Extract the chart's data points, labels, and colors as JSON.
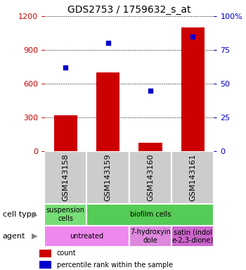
{
  "title": "GDS2753 / 1759632_s_at",
  "samples": [
    "GSM143158",
    "GSM143159",
    "GSM143160",
    "GSM143161"
  ],
  "counts": [
    320,
    700,
    75,
    1100
  ],
  "percentile_ranks": [
    62,
    80,
    45,
    85
  ],
  "left_ylim": [
    0,
    1200
  ],
  "left_yticks": [
    0,
    300,
    600,
    900,
    1200
  ],
  "right_ylim": [
    0,
    100
  ],
  "right_yticks": [
    0,
    25,
    50,
    75,
    100
  ],
  "bar_color": "#cc0000",
  "dot_color": "#0000cc",
  "cell_type_blocks": [
    {
      "label": "suspension\ncells",
      "color": "#77dd77",
      "start": 0,
      "end": 1
    },
    {
      "label": "biofilm cells",
      "color": "#55cc55",
      "start": 1,
      "end": 4
    }
  ],
  "agent_blocks": [
    {
      "label": "untreated",
      "color": "#ee88ee",
      "start": 0,
      "end": 2
    },
    {
      "label": "7-hydroxyin\ndole",
      "color": "#dd88dd",
      "start": 2,
      "end": 3
    },
    {
      "label": "satin (indol\ne-2,3-dione)",
      "color": "#cc66cc",
      "start": 3,
      "end": 4
    }
  ],
  "left_tick_color": "#cc0000",
  "right_tick_color": "#0000cc",
  "title_fontsize": 10,
  "tick_fontsize": 8,
  "annot_fontsize": 7,
  "legend_fontsize": 7,
  "row_label_fontsize": 8,
  "sample_box_color": "#cccccc",
  "grid_color": "black",
  "grid_linestyle": ":",
  "grid_linewidth": 0.7
}
